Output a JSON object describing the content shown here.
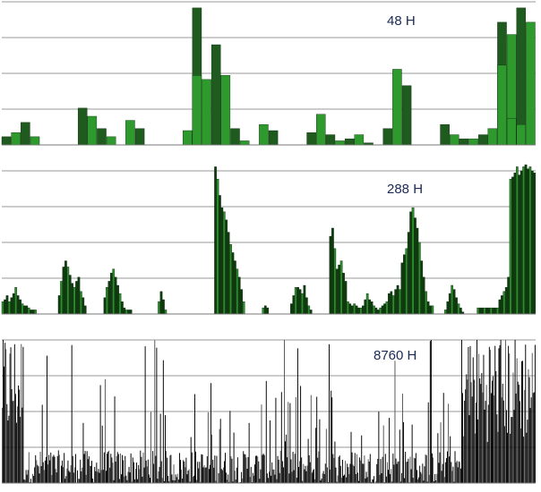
{
  "chart_data": [
    {
      "type": "bar",
      "title": "48 H",
      "ylim": [
        0,
        7
      ],
      "grid": true,
      "colors": {
        "dark": "#1f5a1f",
        "light": "#2e9a2e"
      },
      "values": [
        0.4,
        0.6,
        1.1,
        0.4,
        0,
        0,
        0,
        0,
        1.8,
        1.4,
        0.8,
        0.4,
        0,
        1.2,
        0.8,
        0,
        0,
        0,
        0,
        0.7,
        6.7,
        3.2,
        4.9,
        3.4,
        0.8,
        0.2,
        0,
        1.0,
        0.7,
        0,
        0,
        0,
        0.6,
        1.5,
        0.5,
        0.2,
        0.3,
        0.5,
        0.1,
        0,
        0.8,
        3.7,
        2.9,
        0,
        0,
        0,
        1.0,
        0.5,
        0.3,
        0.3,
        0.5,
        0.8,
        6.0,
        5.4,
        6.7,
        6.0
      ],
      "overlay": [
        0,
        0,
        0,
        0,
        0,
        0,
        0,
        0,
        0,
        0,
        0,
        0,
        0,
        0,
        0,
        0,
        0,
        0,
        0,
        0,
        3.4,
        0,
        0,
        0,
        0,
        0,
        0,
        0,
        0,
        0,
        0,
        0,
        0,
        0,
        0,
        0,
        0,
        0,
        0,
        0,
        0,
        0,
        0,
        0,
        0,
        0,
        0,
        0,
        0,
        0,
        0,
        0,
        3.9,
        1.3,
        1.0,
        0
      ]
    },
    {
      "type": "bar",
      "title": "288 H",
      "ylim": [
        0,
        7
      ],
      "grid": true,
      "colors": {
        "dark": "#0f3d0f",
        "light": "#2e8b2e"
      },
      "values": [
        0.6,
        0.7,
        0.9,
        0.6,
        0.8,
        1.0,
        1.3,
        0.9,
        0.7,
        0.5,
        0.4,
        0.4,
        0.3,
        0.2,
        0.2,
        0.2,
        0,
        0,
        0,
        0,
        0,
        0,
        0,
        0,
        0,
        0,
        0.9,
        1.6,
        2.3,
        2.6,
        2.3,
        1.9,
        1.5,
        1.3,
        1.6,
        1.8,
        1.1,
        0.8,
        0.4,
        0,
        0,
        0,
        0,
        0,
        0,
        0,
        0,
        0.8,
        1.3,
        1.6,
        2.0,
        2.2,
        1.8,
        1.4,
        1.0,
        0.6,
        0.3,
        0.2,
        0.2,
        0.2,
        0,
        0,
        0,
        0,
        0,
        0,
        0,
        0,
        0,
        0,
        0,
        0,
        0.6,
        1.1,
        0.7,
        0.2,
        0,
        0,
        0,
        0,
        0,
        0,
        0,
        0,
        0,
        0,
        0,
        0,
        0,
        0,
        0,
        0,
        0,
        0,
        0,
        0,
        0,
        0,
        7.2,
        6.6,
        5.8,
        5.2,
        5.0,
        4.6,
        4.0,
        3.4,
        3.0,
        2.6,
        2.2,
        1.8,
        1.2,
        0.6,
        0,
        0,
        0,
        0,
        0,
        0,
        0,
        0,
        0.3,
        0.4,
        0.3,
        0,
        0,
        0,
        0,
        0,
        0,
        0,
        0,
        0,
        0,
        0.5,
        0.9,
        1.3,
        1.3,
        1.2,
        1.0,
        1.4,
        0.8,
        0.4,
        0.2,
        0,
        0,
        0,
        0,
        0,
        0,
        0,
        0,
        3.8,
        4.2,
        3.2,
        2.2,
        2.4,
        2.6,
        2.0,
        1.6,
        0.6,
        0.5,
        0.4,
        0.5,
        0.4,
        0.3,
        0.3,
        0.4,
        0.7,
        1.0,
        0.7,
        0.6,
        0.4,
        0.3,
        0.2,
        0.3,
        0.4,
        0.5,
        0.6,
        1.0,
        1.1,
        0.9,
        1.2,
        1.4,
        1.2,
        2.5,
        2.9,
        3.2,
        4.0,
        5.0,
        5.2,
        4.7,
        4.2,
        3.5,
        2.6,
        1.8,
        1.1,
        0.6,
        0.4,
        0.4,
        0,
        0,
        0,
        0,
        0,
        0.2,
        0.6,
        1.0,
        1.4,
        1.2,
        0.8,
        0.5,
        0.3,
        0.1,
        0,
        0,
        0,
        0,
        0,
        0,
        0.3,
        0.3,
        0.3,
        0.3,
        0.3,
        0.3,
        0.3,
        0.3,
        0.3,
        0.3,
        0.7,
        0.9,
        1.1,
        1.3,
        1.8,
        6.6,
        6.7,
        6.9,
        7.2,
        6.8,
        7.0,
        7.2,
        7.3,
        7.1,
        7.2,
        7.0,
        6.9
      ]
    },
    {
      "type": "bar",
      "title": "8760 H",
      "ylim": [
        0,
        7
      ],
      "grid": true,
      "colors": {
        "dark": "#000000",
        "light": "#555555"
      },
      "values": []
    }
  ]
}
